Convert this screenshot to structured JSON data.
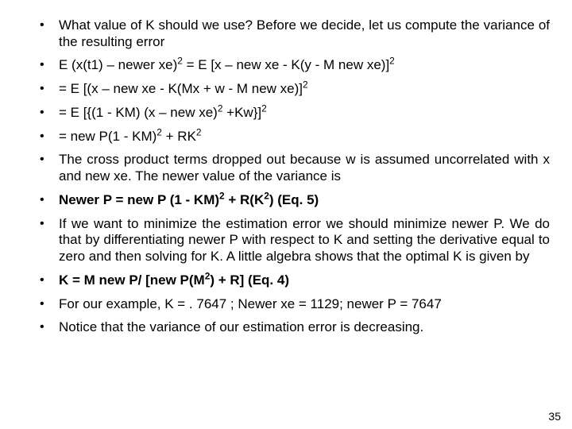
{
  "bullets": [
    {
      "html": "What value of K should we use? Before we decide, let us compute the variance of the resulting error",
      "bold": false
    },
    {
      "html": "E (x(t1) – newer xe)<sup>2</sup> = E [x – new xe - K(y - M new xe)]<sup>2</sup>",
      "bold": false
    },
    {
      "html": "= E [(x – new xe - K(Mx + w - M new xe)]<sup>2</sup>",
      "bold": false
    },
    {
      "html": "= E [{(1 - KM) (x – new xe)<sup>2</sup> +Kw}]<sup>2</sup>",
      "bold": false
    },
    {
      "html": "= new P(1 - KM)<sup>2</sup> + RK<sup>2</sup>",
      "bold": false
    },
    {
      "html": "The cross product terms dropped out because w is assumed uncorrelated with x and new xe. The newer value of the variance is",
      "bold": false
    },
    {
      "html": "Newer P = new P (1 - KM)<sup>2</sup> + R(K<sup>2</sup>) (Eq. 5)",
      "bold": true
    },
    {
      "html": "If we want to minimize the estimation error we should minimize newer P. We do that by differentiating newer P with respect to K and setting the derivative equal to zero and then solving for K. A little algebra shows that the optimal K is given by",
      "bold": false
    },
    {
      "html": "K = M new P/ [new P(M<sup>2</sup>) + R] (Eq. 4)",
      "bold": true
    },
    {
      "html": "For our example, K = . 7647 ; Newer xe = 1129; newer P = 7647",
      "bold": false
    },
    {
      "html": "Notice that the variance of our estimation error is decreasing.",
      "bold": false
    }
  ],
  "page_number": "35",
  "colors": {
    "background": "#ffffff",
    "text": "#000000"
  },
  "typography": {
    "font_family": "Arial",
    "body_fontsize_pt": 13,
    "page_number_fontsize_pt": 11
  }
}
